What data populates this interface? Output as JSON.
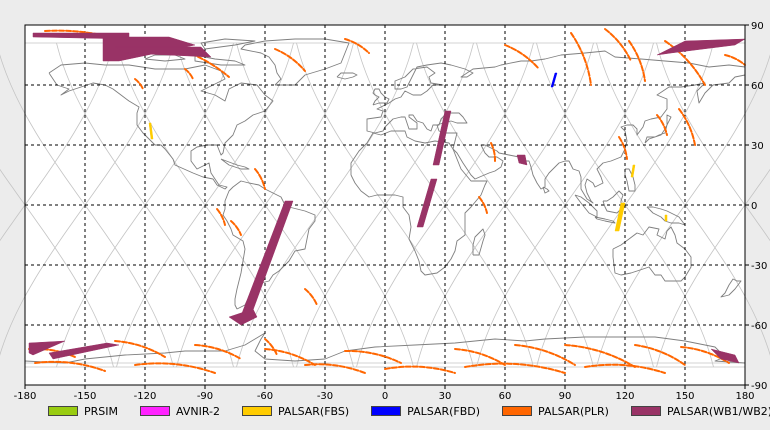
{
  "map": {
    "projection": "equirectangular",
    "lon_range": [
      -180,
      180
    ],
    "lat_range": [
      -90,
      90
    ],
    "x_ticks": [
      "-180",
      "-150",
      "-120",
      "-90",
      "-60",
      "-30",
      "0",
      "30",
      "60",
      "90",
      "120",
      "150",
      "180"
    ],
    "y_ticks": [
      "90",
      "60",
      "30",
      "0",
      "-30",
      "-60",
      "-90"
    ],
    "grid": "dashed, every 30 degrees",
    "ocean_color": "#ffffff",
    "coastline_color": "#7f7f7f",
    "orbit_track_color": "#c4c4c4"
  },
  "legend": [
    {
      "label": "PRSIM",
      "color": "#99cc11"
    },
    {
      "label": "AVNIR-2",
      "color": "#ff22ff"
    },
    {
      "label": "PALSAR(FBS)",
      "color": "#ffcc00"
    },
    {
      "label": "PALSAR(FBD)",
      "color": "#0000ff"
    },
    {
      "label": "PALSAR(PLR)",
      "color": "#ff6600"
    },
    {
      "label": "PALSAR(WB1/WB2)",
      "color": "#993366"
    }
  ],
  "observations": [
    {
      "sensor": "PALSAR(WB1/WB2)",
      "color": "#993366",
      "lonlat": [
        [
          -176,
          86
        ],
        [
          -128,
          86
        ],
        [
          -128,
          83
        ],
        [
          -176,
          84
        ]
      ]
    },
    {
      "sensor": "PALSAR(WB1/WB2)",
      "color": "#993366",
      "lonlat": [
        [
          -141,
          84
        ],
        [
          -108,
          84
        ],
        [
          -95,
          80
        ],
        [
          -133,
          72
        ],
        [
          -141,
          72
        ]
      ]
    },
    {
      "sensor": "PALSAR(WB1/WB2)",
      "color": "#993366",
      "lonlat": [
        [
          -135,
          79
        ],
        [
          -92,
          79
        ],
        [
          -87,
          74
        ],
        [
          -130,
          76
        ]
      ]
    },
    {
      "sensor": "PALSAR(WB1/WB2)",
      "color": "#993366",
      "lonlat": [
        [
          150,
          82
        ],
        [
          180,
          83
        ],
        [
          175,
          80
        ],
        [
          143,
          76
        ],
        [
          136,
          75
        ]
      ]
    },
    {
      "sensor": "PALSAR(WB1/WB2)",
      "color": "#993366",
      "lonlat": [
        [
          30,
          47
        ],
        [
          33,
          47
        ],
        [
          27,
          20
        ],
        [
          24,
          20
        ]
      ]
    },
    {
      "sensor": "PALSAR(WB1/WB2)",
      "color": "#993366",
      "lonlat": [
        [
          23,
          13
        ],
        [
          26,
          13
        ],
        [
          19,
          -11
        ],
        [
          16,
          -11
        ]
      ]
    },
    {
      "sensor": "PALSAR(WB1/WB2)",
      "color": "#993366",
      "lonlat": [
        [
          -50,
          2
        ],
        [
          -46,
          2
        ],
        [
          -68,
          -58
        ],
        [
          -73,
          -58
        ]
      ]
    },
    {
      "sensor": "PALSAR(WB1/WB2)",
      "color": "#993366",
      "lonlat": [
        [
          -66,
          -52
        ],
        [
          -64,
          -56
        ],
        [
          -72,
          -60
        ],
        [
          -78,
          -56
        ]
      ]
    },
    {
      "sensor": "PALSAR(WB1/WB2)",
      "color": "#993366",
      "lonlat": [
        [
          -178,
          -69
        ],
        [
          -160,
          -68
        ],
        [
          -176,
          -75
        ],
        [
          -178,
          -74
        ]
      ]
    },
    {
      "sensor": "PALSAR(WB1/WB2)",
      "color": "#993366",
      "lonlat": [
        [
          -168,
          -74
        ],
        [
          -139,
          -69
        ],
        [
          -133,
          -70
        ],
        [
          -166,
          -77
        ]
      ]
    },
    {
      "sensor": "PALSAR(WB1/WB2)",
      "color": "#993366",
      "lonlat": [
        [
          163,
          -72
        ],
        [
          175,
          -75
        ],
        [
          177,
          -79
        ],
        [
          168,
          -77
        ]
      ]
    },
    {
      "sensor": "PALSAR(WB1/WB2)",
      "color": "#993366",
      "lonlat": [
        [
          66,
          25
        ],
        [
          70,
          25
        ],
        [
          71,
          20
        ],
        [
          67,
          21
        ]
      ]
    },
    {
      "sensor": "PALSAR(FBD)",
      "color": "#0000ff",
      "lonlat": [
        [
          85,
          66
        ],
        [
          86,
          66
        ],
        [
          84,
          59
        ],
        [
          83,
          59
        ]
      ]
    },
    {
      "sensor": "PALSAR(FBS)",
      "color": "#ffcc00",
      "lonlat": [
        [
          -118,
          41
        ],
        [
          -117,
          41
        ],
        [
          -116,
          33
        ],
        [
          -117,
          33
        ]
      ]
    },
    {
      "sensor": "PALSAR(FBS)",
      "color": "#ffcc00",
      "lonlat": [
        [
          118,
          1
        ],
        [
          120,
          1
        ],
        [
          117,
          -13
        ],
        [
          115,
          -13
        ]
      ]
    },
    {
      "sensor": "PALSAR(FBS)",
      "color": "#ffcc00",
      "lonlat": [
        [
          124,
          20
        ],
        [
          125,
          20
        ],
        [
          124,
          14
        ],
        [
          123,
          14
        ]
      ]
    },
    {
      "sensor": "PALSAR(FBS)",
      "color": "#ffcc00",
      "lonlat": [
        [
          140,
          -5
        ],
        [
          141,
          -5
        ],
        [
          141,
          -8
        ],
        [
          140,
          -8
        ]
      ]
    }
  ],
  "plr_arcs": [
    [
      [
        -170,
        87
      ],
      [
        -120,
        78
      ]
    ],
    [
      [
        -110,
        80
      ],
      [
        -78,
        64
      ]
    ],
    [
      [
        -55,
        78
      ],
      [
        -40,
        67
      ]
    ],
    [
      [
        -20,
        83
      ],
      [
        -8,
        76
      ]
    ],
    [
      [
        60,
        80
      ],
      [
        77,
        68
      ]
    ],
    [
      [
        93,
        86
      ],
      [
        103,
        60
      ]
    ],
    [
      [
        110,
        88
      ],
      [
        123,
        72
      ]
    ],
    [
      [
        122,
        82
      ],
      [
        130,
        62
      ]
    ],
    [
      [
        140,
        82
      ],
      [
        160,
        60
      ]
    ],
    [
      [
        170,
        75
      ],
      [
        180,
        70
      ]
    ],
    [
      [
        -125,
        63
      ],
      [
        -121,
        58
      ]
    ],
    [
      [
        -100,
        68
      ],
      [
        -96,
        63
      ]
    ],
    [
      [
        -65,
        18
      ],
      [
        -60,
        8
      ]
    ],
    [
      [
        -77,
        -8
      ],
      [
        -72,
        -15
      ]
    ],
    [
      [
        -60,
        -67
      ],
      [
        -54,
        -75
      ]
    ],
    [
      [
        -135,
        -68
      ],
      [
        -110,
        -76
      ]
    ],
    [
      [
        -95,
        -70
      ],
      [
        -72,
        -77
      ]
    ],
    [
      [
        -60,
        -72
      ],
      [
        -35,
        -80
      ]
    ],
    [
      [
        -20,
        -73
      ],
      [
        8,
        -79
      ]
    ],
    [
      [
        35,
        -72
      ],
      [
        60,
        -80
      ]
    ],
    [
      [
        65,
        -70
      ],
      [
        95,
        -80
      ]
    ],
    [
      [
        90,
        -70
      ],
      [
        125,
        -81
      ]
    ],
    [
      [
        125,
        -70
      ],
      [
        150,
        -80
      ]
    ],
    [
      [
        148,
        -71
      ],
      [
        172,
        -79
      ]
    ],
    [
      [
        -175,
        -79
      ],
      [
        -140,
        -83
      ]
    ],
    [
      [
        -125,
        -80
      ],
      [
        -85,
        -84
      ]
    ],
    [
      [
        0,
        -82
      ],
      [
        35,
        -84
      ]
    ],
    [
      [
        -40,
        -80
      ],
      [
        -10,
        -84
      ]
    ],
    [
      [
        40,
        -81
      ],
      [
        90,
        -84
      ]
    ],
    [
      [
        100,
        -81
      ],
      [
        140,
        -84
      ]
    ],
    [
      [
        -178,
        -72
      ],
      [
        -155,
        -76
      ]
    ],
    [
      [
        53,
        31
      ],
      [
        55,
        22
      ]
    ],
    [
      [
        117,
        34
      ],
      [
        121,
        23
      ]
    ],
    [
      [
        147,
        48
      ],
      [
        155,
        30
      ]
    ],
    [
      [
        136,
        45
      ],
      [
        141,
        35
      ]
    ],
    [
      [
        47,
        4
      ],
      [
        51,
        -4
      ]
    ],
    [
      [
        -84,
        -2
      ],
      [
        -80,
        -10
      ]
    ],
    [
      [
        -40,
        -42
      ],
      [
        -34,
        -50
      ]
    ]
  ]
}
